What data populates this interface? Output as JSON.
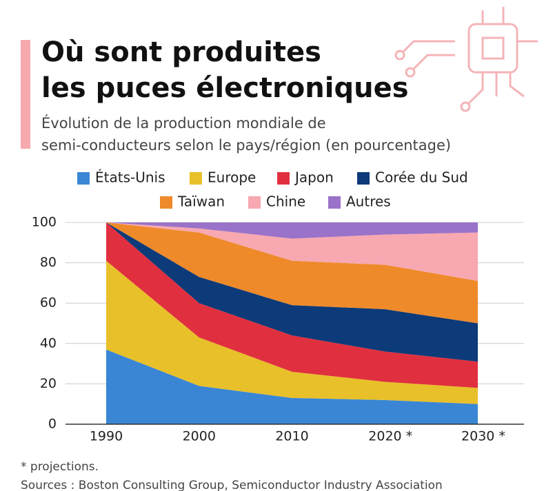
{
  "chart_data": {
    "type": "stacked_area",
    "title": [
      "Où sont produites",
      "les puces électroniques"
    ],
    "subtitle": [
      "Évolution de la production mondiale de",
      "semi-conducteurs selon le pays/région (en pourcentage)"
    ],
    "categories": [
      "1990",
      "2000",
      "2010",
      "2020 *",
      "2030 *"
    ],
    "series": [
      {
        "name": "États-Unis",
        "color": "#3a86d4",
        "values": [
          37,
          19,
          13,
          12,
          10
        ]
      },
      {
        "name": "Europe",
        "color": "#e8c02a",
        "values": [
          44,
          24,
          13,
          9,
          8
        ]
      },
      {
        "name": "Japon",
        "color": "#e0303f",
        "values": [
          19,
          17,
          18,
          15,
          13
        ]
      },
      {
        "name": "Corée du Sud",
        "color": "#0d3a78",
        "values": [
          0,
          13,
          15,
          21,
          19
        ]
      },
      {
        "name": "Taïwan",
        "color": "#ee8a2a",
        "values": [
          0,
          22,
          22,
          22,
          21
        ]
      },
      {
        "name": "Chine",
        "color": "#f7a8b0",
        "values": [
          0,
          2,
          11,
          15,
          24
        ]
      },
      {
        "name": "Autres",
        "color": "#9a72c9",
        "values": [
          0,
          3,
          8,
          6,
          5
        ]
      }
    ],
    "ylim": [
      0,
      100
    ],
    "yticks": [
      0,
      20,
      40,
      60,
      80,
      100
    ],
    "grid": true,
    "note": "* projections.",
    "source": "Sources : Boston Consulting Group, Semiconductor Industry Association"
  }
}
